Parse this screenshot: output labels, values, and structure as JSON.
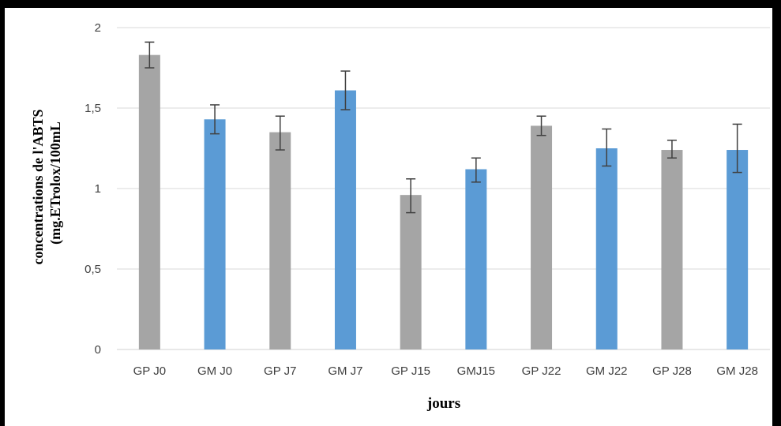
{
  "chart_data": {
    "type": "bar",
    "title": "",
    "xlabel": "jours",
    "ylabel_line1": "concentrations de l'ABTS",
    "ylabel_line2": "(mg.ETrolox/100mL",
    "ylim": [
      0,
      2
    ],
    "yticks": [
      0,
      0.5,
      1,
      1.5,
      2
    ],
    "ytick_labels": [
      "0",
      "0,5",
      "1",
      "1,5",
      "2"
    ],
    "grid": true,
    "legend": "none",
    "categories": [
      "GP J0",
      "GM J0",
      "GP J7",
      "GM J7",
      "GP J15",
      "GMJ15",
      "GP J22",
      "GM J22",
      "GP J28",
      "GM J28"
    ],
    "values": [
      1.83,
      1.43,
      1.35,
      1.61,
      0.96,
      1.12,
      1.39,
      1.25,
      1.24,
      1.24
    ],
    "error_high": [
      1.91,
      1.52,
      1.45,
      1.73,
      1.06,
      1.19,
      1.45,
      1.37,
      1.3,
      1.4
    ],
    "error_low": [
      1.75,
      1.34,
      1.24,
      1.49,
      0.85,
      1.04,
      1.33,
      1.14,
      1.19,
      1.1
    ],
    "colors": [
      "#a5a5a5",
      "#5b9bd5",
      "#a5a5a5",
      "#5b9bd5",
      "#a5a5a5",
      "#5b9bd5",
      "#a5a5a5",
      "#5b9bd5",
      "#a5a5a5",
      "#5b9bd5"
    ],
    "gridline_color": "#d9d9d9",
    "errorbar_color": "#404040"
  }
}
